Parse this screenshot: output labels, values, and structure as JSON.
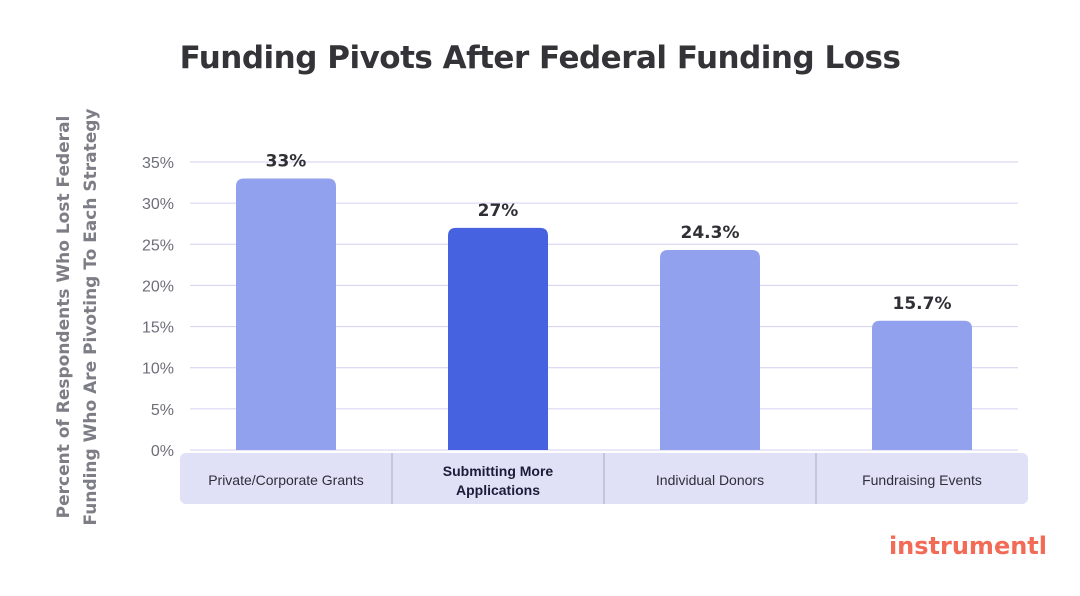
{
  "chart_data": {
    "type": "bar",
    "title": "Funding Pivots After Federal Funding Loss",
    "xlabel": "",
    "ylabel": "Percent of Respondents Who Lost Federal Funding Who Are Pivoting To Each Strategy",
    "categories": [
      "Private/Corporate Grants",
      "Submitting More Applications",
      "Individual Donors",
      "Fundraising Events"
    ],
    "values": [
      33,
      27,
      24.3,
      15.7
    ],
    "data_labels": [
      "33%",
      "27%",
      "24.3%",
      "15.7%"
    ],
    "highlighted": [
      false,
      true,
      false,
      false
    ],
    "ylim": [
      0,
      35
    ],
    "yticks": [
      0,
      5,
      10,
      15,
      20,
      25,
      30,
      35
    ],
    "ytick_labels": [
      "0%",
      "5%",
      "10%",
      "15%",
      "20%",
      "25%",
      "30%",
      "35%"
    ],
    "grid": true,
    "legend": "none"
  },
  "colors": {
    "bar": "#92a1ee",
    "bar_highlight": "#4662e0",
    "grid": "#d4d0f0",
    "category_band": "#e0e0f7",
    "logo": "#f26b57"
  },
  "brand": {
    "logo_text": "instrumentl",
    "icon": "instrumentl-logo"
  }
}
